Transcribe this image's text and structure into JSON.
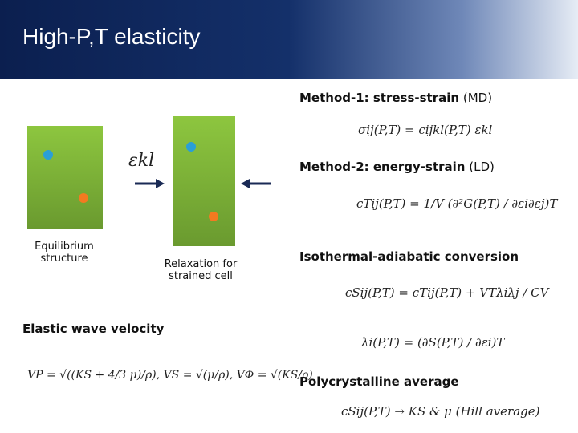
{
  "header": {
    "title": "High-P,T elasticity"
  },
  "method1": {
    "label": "Method-1: stress-strain",
    "note": "(MD)",
    "equation": "σij(P,T) = cijkl(P,T) εkl"
  },
  "method2": {
    "label": "Method-2: energy-strain",
    "note": "(LD)",
    "equation": "cTij(P,T) = 1/V (∂²G(P,T) / ∂εi∂εj)T"
  },
  "strain_symbol": "εkl",
  "left_box": {
    "caption": "Equilibrium structure"
  },
  "right_box": {
    "caption": "Relaxation for strained cell"
  },
  "conversion": {
    "label": "Isothermal-adiabatic conversion",
    "equation": "cSij(P,T) = cTij(P,T) + VTλiλj / CV",
    "lambda_equation": "λi(P,T) = (∂S(P,T) / ∂εi)T"
  },
  "wave": {
    "label": "Elastic wave velocity",
    "equation": "VP = √((KS + 4/3 μ)/ρ), VS = √(μ/ρ), VΦ = √(KS/ρ)"
  },
  "average": {
    "label": "Polycrystalline average",
    "equation": "cSij(P,T) → KS & μ (Hill average)"
  }
}
